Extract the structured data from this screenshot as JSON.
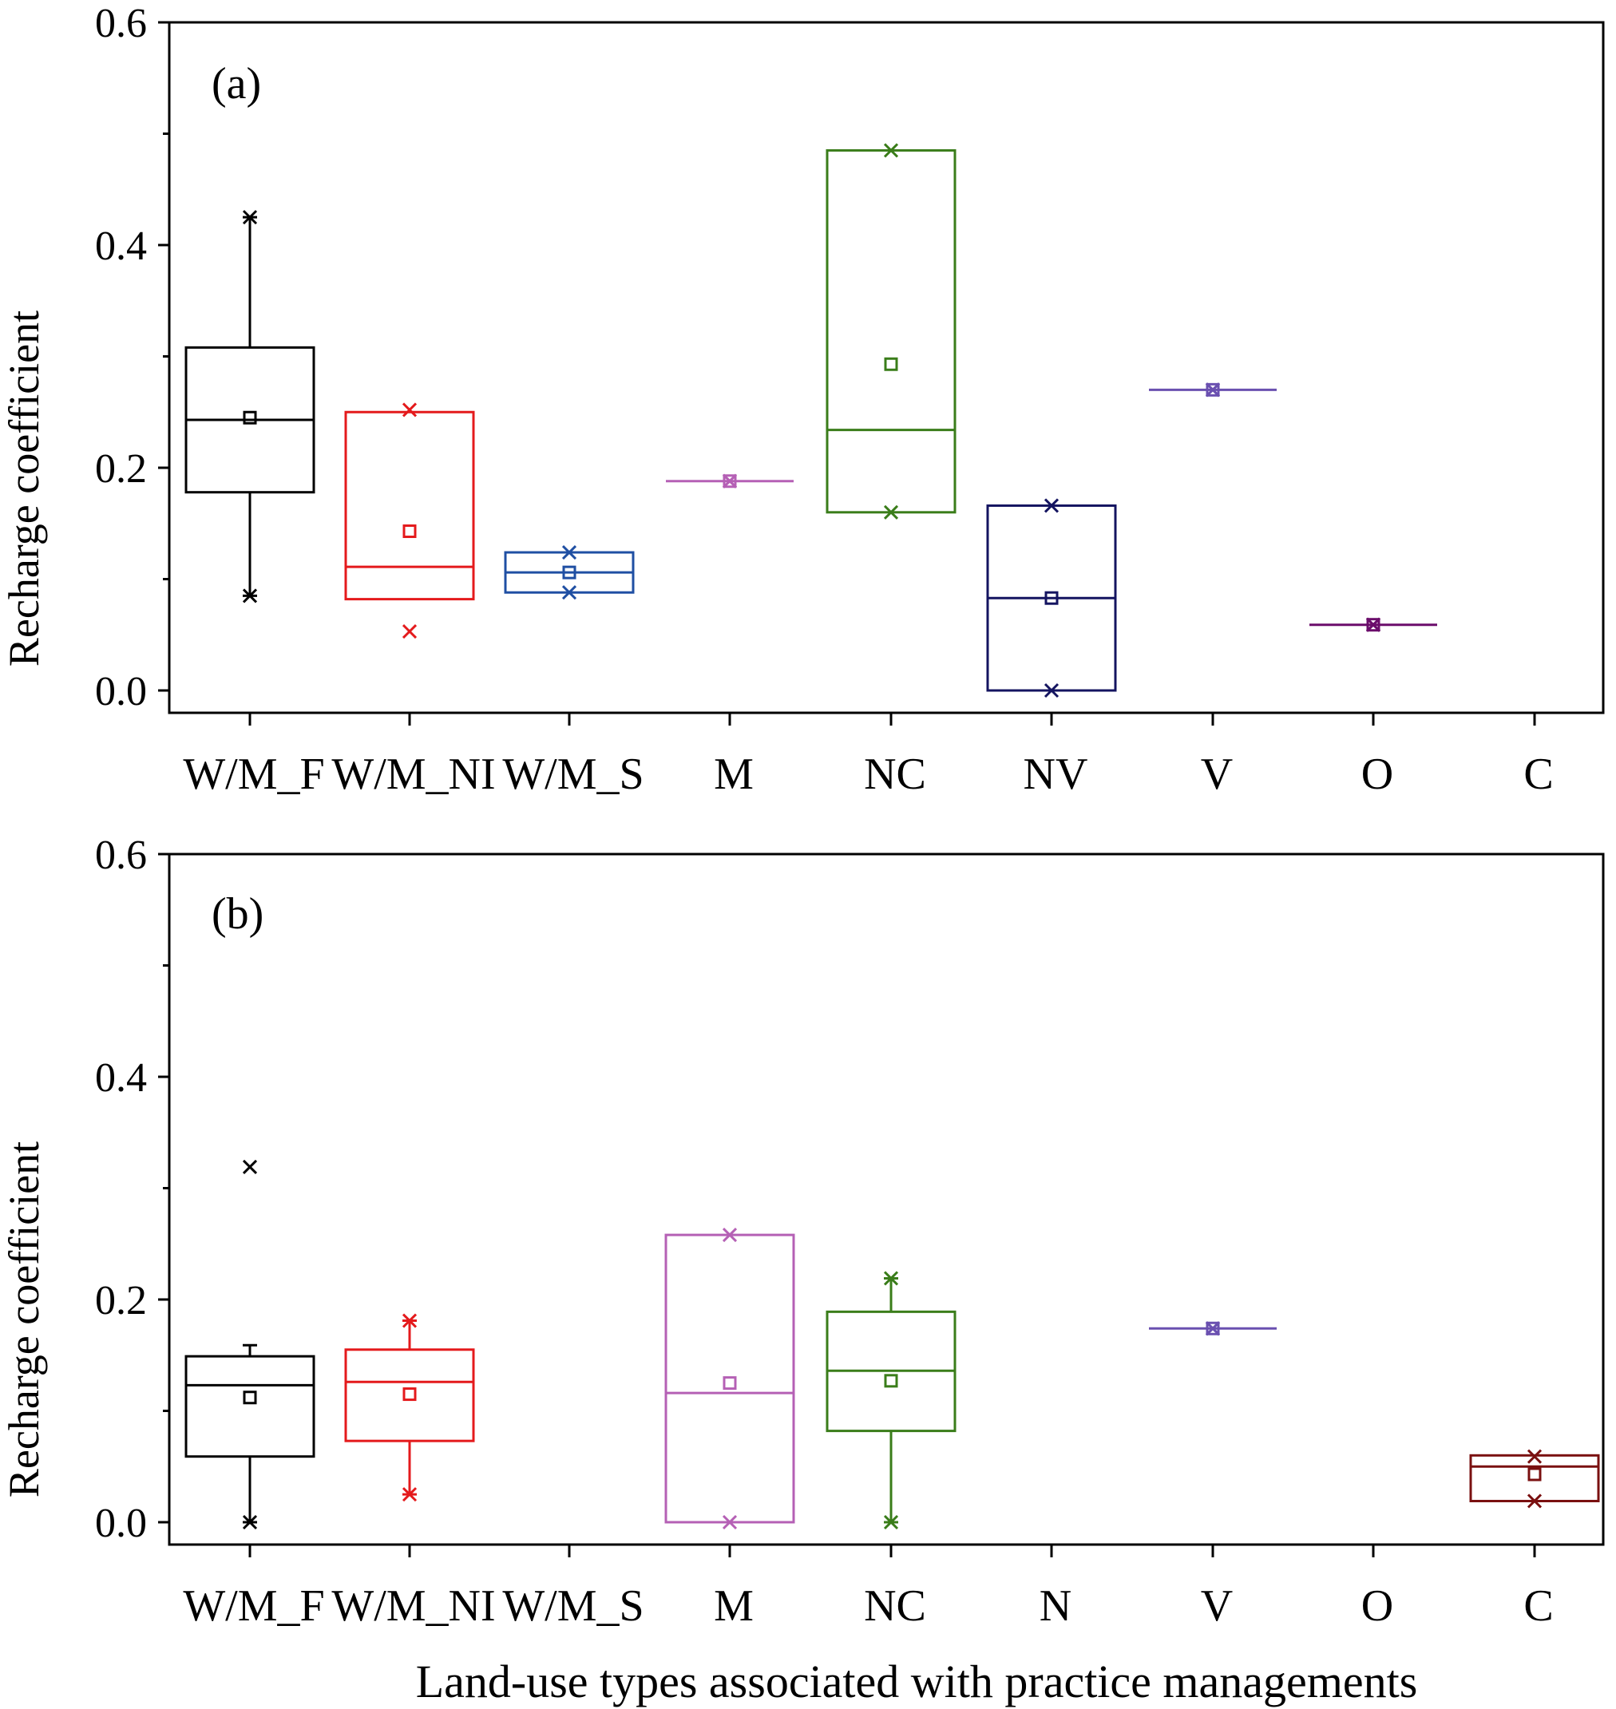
{
  "figure": {
    "xlabel": "Land-use types associated with practice managements"
  },
  "chart_data": [
    {
      "type": "box",
      "panel_label": "(a)",
      "ylabel": "Recharge coefficient",
      "ylim": [
        0,
        0.6
      ],
      "yticks": [
        "0.0",
        "0.2",
        "0.4",
        "0.6"
      ],
      "categories": [
        "W/M_F",
        "W/M_NI",
        "W/M_S",
        "M",
        "NC",
        "NV",
        "V",
        "O",
        "C"
      ],
      "boxes": [
        {
          "category": "W/M_F",
          "color": "#000000",
          "q1": 0.178,
          "median": 0.243,
          "q3": 0.308,
          "mean": 0.245,
          "whisker_low": 0.085,
          "whisker_high": 0.425,
          "min": 0.085,
          "max": 0.425
        },
        {
          "category": "W/M_NI",
          "color": "#e41a1c",
          "q1": 0.082,
          "median": 0.111,
          "q3": 0.25,
          "mean": 0.143,
          "whisker_low": 0.082,
          "whisker_high": 0.25,
          "min": 0.053,
          "max": 0.252
        },
        {
          "category": "W/M_S",
          "color": "#1f4fa3",
          "q1": 0.088,
          "median": 0.106,
          "q3": 0.124,
          "mean": 0.106,
          "whisker_low": 0.088,
          "whisker_high": 0.124,
          "min": 0.088,
          "max": 0.124
        },
        {
          "category": "M",
          "color": "#b560b5",
          "q1": 0.188,
          "median": 0.188,
          "q3": 0.188,
          "mean": 0.188,
          "whisker_low": 0.188,
          "whisker_high": 0.188,
          "min": 0.188,
          "max": 0.188
        },
        {
          "category": "NC",
          "color": "#3a7d1a",
          "q1": 0.16,
          "median": 0.234,
          "q3": 0.485,
          "mean": 0.293,
          "whisker_low": 0.16,
          "whisker_high": 0.485,
          "min": 0.16,
          "max": 0.485
        },
        {
          "category": "NV",
          "color": "#141460",
          "q1": 0.0,
          "median": 0.083,
          "q3": 0.166,
          "mean": 0.083,
          "whisker_low": 0.0,
          "whisker_high": 0.166,
          "min": 0.0,
          "max": 0.166
        },
        {
          "category": "V",
          "color": "#6a50b0",
          "q1": 0.27,
          "median": 0.27,
          "q3": 0.27,
          "mean": 0.27,
          "whisker_low": 0.27,
          "whisker_high": 0.27,
          "min": 0.27,
          "max": 0.27
        },
        {
          "category": "O",
          "color": "#6b0d6b",
          "q1": 0.059,
          "median": 0.059,
          "q3": 0.059,
          "mean": 0.059,
          "whisker_low": 0.059,
          "whisker_high": 0.059,
          "min": 0.059,
          "max": 0.059
        }
      ]
    },
    {
      "type": "box",
      "panel_label": "(b)",
      "ylabel": "Recharge coefficient",
      "ylim": [
        0,
        0.6
      ],
      "yticks": [
        "0.0",
        "0.2",
        "0.4",
        "0.6"
      ],
      "categories": [
        "W/M_F",
        "W/M_NI",
        "W/M_S",
        "M",
        "NC",
        "N",
        "V",
        "O",
        "C"
      ],
      "boxes": [
        {
          "category": "W/M_F",
          "color": "#000000",
          "q1": 0.059,
          "median": 0.123,
          "q3": 0.149,
          "mean": 0.112,
          "whisker_low": 0.0,
          "whisker_high": 0.159,
          "min": 0.0,
          "max": 0.319
        },
        {
          "category": "W/M_NI",
          "color": "#e41a1c",
          "q1": 0.073,
          "median": 0.126,
          "q3": 0.155,
          "mean": 0.115,
          "whisker_low": 0.025,
          "whisker_high": 0.181,
          "min": 0.025,
          "max": 0.181
        },
        {
          "category": "M",
          "color": "#b560b5",
          "q1": 0.0,
          "median": 0.116,
          "q3": 0.258,
          "mean": 0.125,
          "whisker_low": 0.0,
          "whisker_high": 0.258,
          "min": 0.0,
          "max": 0.258
        },
        {
          "category": "NC",
          "color": "#3a7d1a",
          "q1": 0.082,
          "median": 0.136,
          "q3": 0.189,
          "mean": 0.127,
          "whisker_low": 0.0,
          "whisker_high": 0.219,
          "min": 0.0,
          "max": 0.219
        },
        {
          "category": "V",
          "color": "#6a50b0",
          "q1": 0.174,
          "median": 0.174,
          "q3": 0.174,
          "mean": 0.174,
          "whisker_low": 0.174,
          "whisker_high": 0.174,
          "min": 0.174,
          "max": 0.174
        },
        {
          "category": "C",
          "color": "#7a1010",
          "q1": 0.019,
          "median": 0.05,
          "q3": 0.06,
          "mean": 0.043,
          "whisker_low": 0.019,
          "whisker_high": 0.06,
          "min": 0.019,
          "max": 0.059
        }
      ]
    }
  ]
}
